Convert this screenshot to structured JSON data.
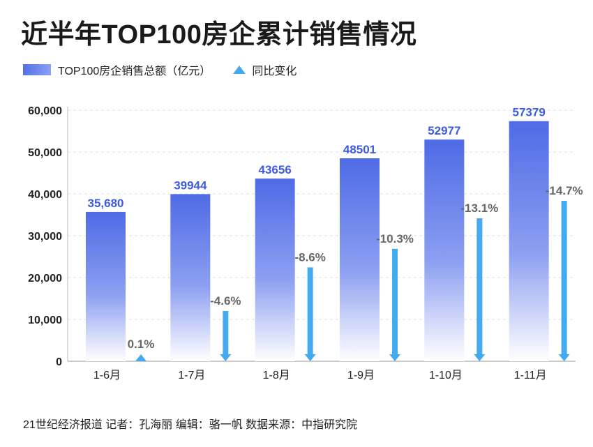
{
  "title": "近半年TOP100房企累计销售情况",
  "footer": "21世纪经济报道 记者：孔海丽  编辑：骆一帆 数据来源：中指研究院",
  "colors": {
    "bar_top": "#4f6be6",
    "bar_bottom": "#ffffff",
    "arrow": "#44aaf0",
    "bar_label": "#3d5ae0",
    "pct_label": "#666666",
    "axis_text": "#222222",
    "grid": "#dddddd"
  },
  "chart_data": {
    "type": "bar",
    "title": "近半年TOP100房企累计销售情况",
    "categories": [
      "1-6月",
      "1-7月",
      "1-8月",
      "1-9月",
      "1-10月",
      "1-11月"
    ],
    "series": [
      {
        "name": "TOP100房企销售总额（亿元）",
        "type": "bar",
        "values": [
          35680,
          39944,
          43656,
          48501,
          52977,
          57379
        ],
        "labels": [
          "35,680",
          "39944",
          "43656",
          "48501",
          "52977",
          "57379"
        ]
      },
      {
        "name": "同比变化",
        "type": "arrow",
        "values": [
          0.1,
          -4.6,
          -8.6,
          -10.3,
          -13.1,
          -14.7
        ],
        "labels": [
          "0.1%",
          "-4.6%",
          "-8.6%",
          "-10.3%",
          "-13.1%",
          "-14.7%"
        ]
      }
    ],
    "y_ticks": [
      0,
      10000,
      20000,
      30000,
      40000,
      50000,
      60000
    ],
    "y_tick_labels": [
      "0",
      "10,000",
      "20,000",
      "30,000",
      "40,000",
      "50,000",
      "60,000"
    ],
    "ylim": [
      0,
      60000
    ],
    "grid": true,
    "legend_position": "top-left"
  }
}
